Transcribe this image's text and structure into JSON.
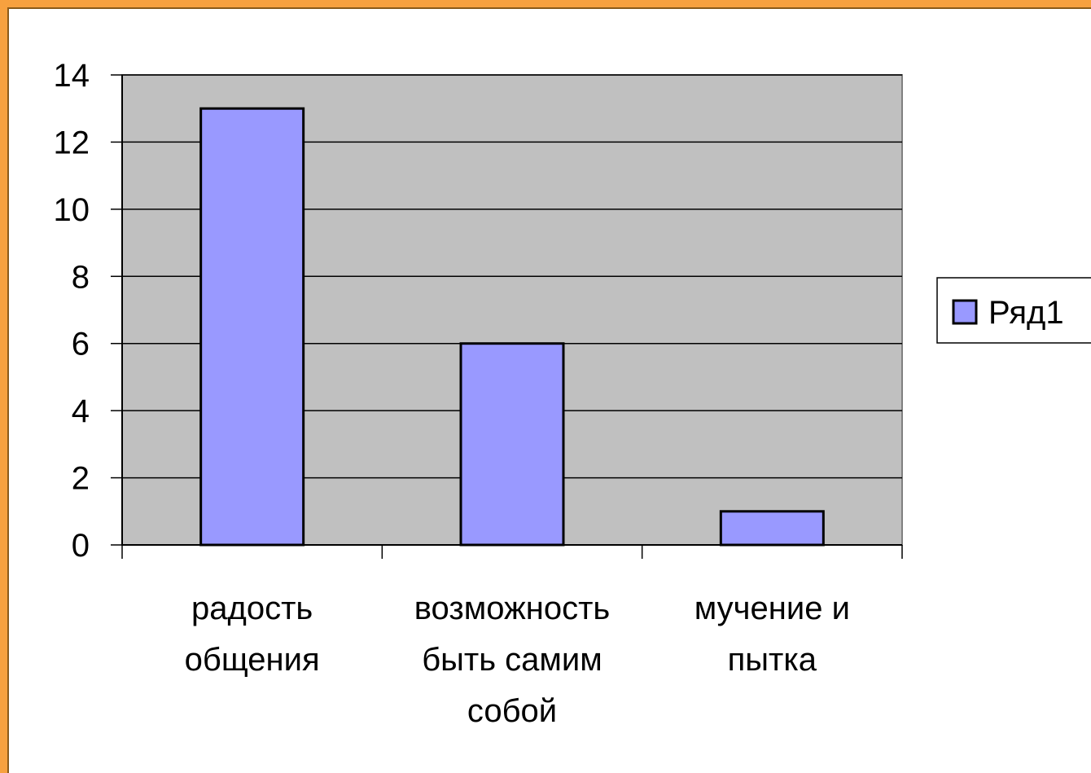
{
  "chart_data": {
    "type": "bar",
    "categories": [
      [
        "радость",
        "общения"
      ],
      [
        "возможность",
        "быть самим",
        "собой"
      ],
      [
        "мучение и",
        "пытка"
      ]
    ],
    "series": [
      {
        "name": "Ряд1",
        "values": [
          13,
          6,
          1
        ]
      }
    ],
    "yticks": [
      "0",
      "2",
      "4",
      "6",
      "8",
      "10",
      "12",
      "14"
    ],
    "ylim": [
      0,
      14
    ],
    "grid": true,
    "legend": "right",
    "colors": {
      "bar_fill": "#9999ff",
      "bar_stroke": "#000000",
      "plot_bg": "#c0c0c0",
      "frame": "#f7a13f"
    }
  }
}
